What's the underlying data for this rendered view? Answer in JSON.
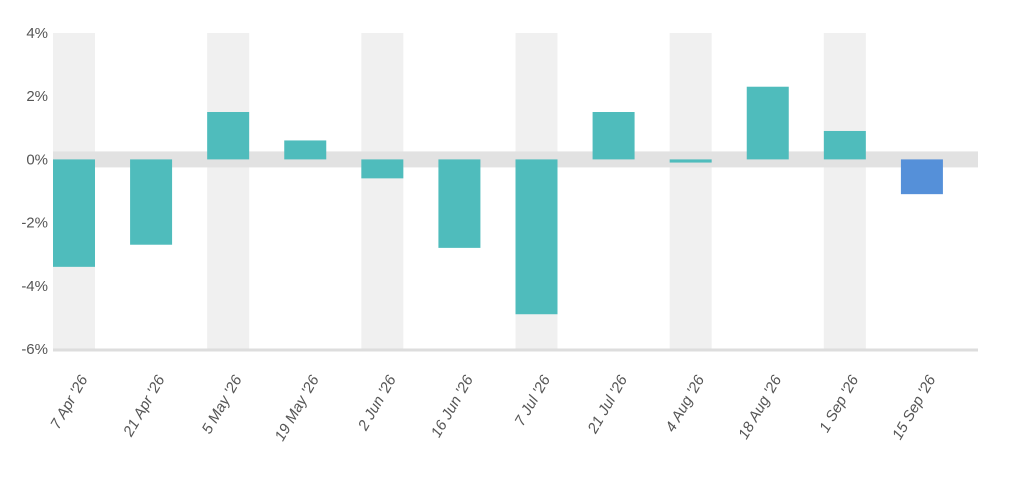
{
  "chart_data": {
    "type": "bar",
    "title": "",
    "xlabel": "",
    "ylabel": "",
    "categories": [
      "7 Apr '26",
      "21 Apr '26",
      "5 May '26",
      "19 May '26",
      "2 Jun '26",
      "16 Jun '26",
      "7 Jul '26",
      "21 Jul '26",
      "4 Aug '26",
      "18 Aug '26",
      "1 Sep '26",
      "15 Sep '26"
    ],
    "values": [
      -3.4,
      -2.7,
      1.5,
      0.6,
      -0.6,
      -2.8,
      -4.9,
      1.5,
      -0.1,
      2.3,
      0.9,
      -1.1
    ],
    "ylim": [
      -6,
      4
    ],
    "yticks": [
      4,
      2,
      0,
      -2,
      -4,
      -6
    ],
    "ytick_labels": [
      "4%",
      "2%",
      "0%",
      "-2%",
      "-4%",
      "-6%"
    ],
    "grid": false,
    "legend": "none",
    "colors": {
      "default_bar": "#4fbcbc",
      "last_bar": "#5590d9",
      "band": "#f0f0f0",
      "zero_band": "#e2e2e2",
      "axis": "#dddddd"
    }
  }
}
